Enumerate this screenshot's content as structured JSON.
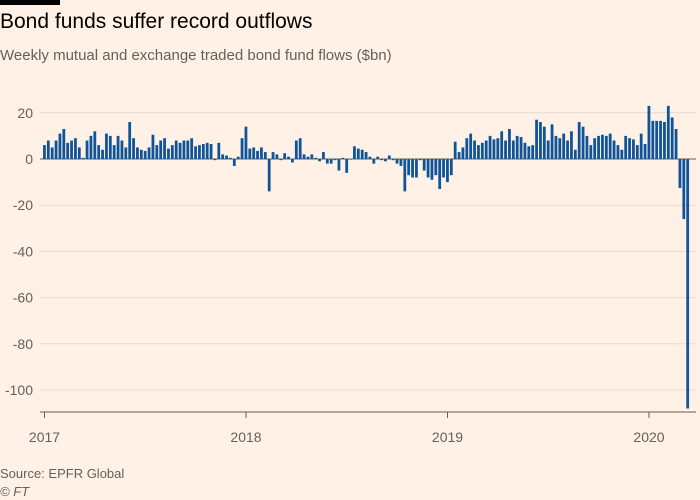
{
  "chart_data": {
    "type": "bar",
    "title": "Bond funds suffer record outflows",
    "subtitle": "Weekly mutual and exchange traded bond fund flows ($bn)",
    "xlabel": "",
    "ylabel": "",
    "ylim": [
      -108,
      25
    ],
    "y_ticks": [
      20,
      0,
      -20,
      -40,
      -60,
      -80,
      -100
    ],
    "x_ticks": [
      {
        "label": "2017",
        "year": 2017
      },
      {
        "label": "2018",
        "year": 2018
      },
      {
        "label": "2019",
        "year": 2019
      },
      {
        "label": "2020",
        "year": 2020
      }
    ],
    "grid": true,
    "bar_color": "#0f5499",
    "start_year": 2017,
    "weeks_per_year": 52,
    "values": [
      6,
      8,
      5,
      8,
      11,
      13,
      7,
      8,
      9,
      5,
      0.5,
      8,
      10,
      12,
      6,
      4,
      11,
      10,
      6,
      10,
      8,
      5,
      16,
      9,
      5,
      4,
      3.5,
      5,
      10.5,
      6,
      8,
      9,
      4.5,
      6,
      8,
      7,
      8,
      8,
      9,
      5.5,
      6,
      6.5,
      7,
      6.5,
      -0.5,
      7,
      2,
      1.5,
      0.5,
      -3,
      1,
      9,
      14,
      4.5,
      5,
      3.5,
      5,
      3,
      -14,
      3,
      2,
      -0.5,
      2.5,
      1,
      -1.5,
      8,
      9,
      2,
      1,
      2,
      0.5,
      -1,
      3,
      -2,
      -2,
      -0.5,
      -5,
      0.5,
      -6,
      0,
      5.5,
      4.5,
      4,
      3,
      1,
      -2,
      1,
      -0.5,
      -1,
      1.5,
      -0.5,
      -2,
      -3,
      -14,
      -7,
      -8,
      -8,
      -0.5,
      -5,
      -8,
      -9,
      -7,
      -13,
      -8,
      -10,
      -7,
      7.5,
      3,
      5,
      9,
      11,
      8,
      6,
      7,
      8,
      10,
      8.5,
      9,
      12,
      8,
      13,
      8,
      10,
      9.5,
      7,
      5.5,
      6,
      17,
      16,
      14,
      8,
      15,
      10,
      9,
      11,
      8,
      12,
      4,
      16,
      14,
      10,
      6,
      9,
      10,
      10.5,
      10,
      11,
      8,
      6,
      4,
      10,
      9,
      8.5,
      6,
      11,
      6.5,
      23,
      16.5,
      16.5,
      16.5,
      16,
      23,
      18,
      13,
      -12.5,
      -26,
      -108
    ]
  },
  "source": "Source: EPFR Global",
  "copyright": "© FT"
}
